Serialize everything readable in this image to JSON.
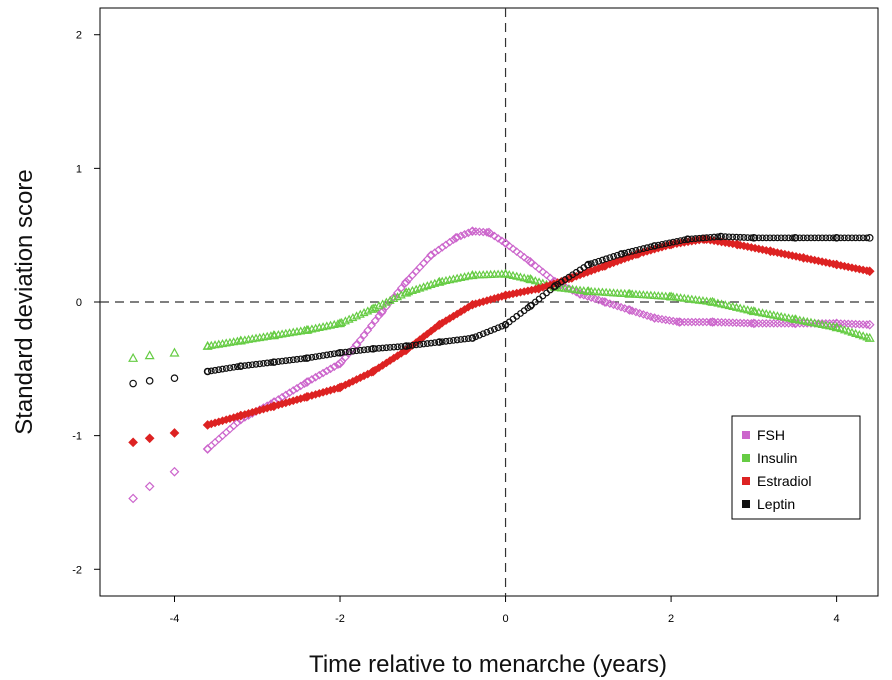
{
  "chart_data": {
    "type": "scatter",
    "title": "",
    "xlabel": "Time relative to menarche (years)",
    "ylabel": "Standard deviation score",
    "xlim": [
      -4.9,
      4.5
    ],
    "ylim": [
      -2.2,
      2.2
    ],
    "xticks": [
      -4,
      -2,
      0,
      2,
      4
    ],
    "yticks": [
      -2,
      -1,
      0,
      1,
      2
    ],
    "grid": false,
    "reference_lines": {
      "x": 0,
      "y": 0,
      "style": "dashed"
    },
    "legend_position": "bottom-right",
    "series": [
      {
        "name": "FSH",
        "color": "#cc66cc",
        "marker": "diamond",
        "points": [
          [
            -4.5,
            -1.47
          ],
          [
            -4.3,
            -1.38
          ],
          [
            -4.0,
            -1.27
          ],
          [
            -3.6,
            -1.1
          ],
          [
            -3.2,
            -0.88
          ],
          [
            -2.8,
            -0.75
          ],
          [
            -2.4,
            -0.6
          ],
          [
            -2.0,
            -0.46
          ],
          [
            -1.8,
            -0.32
          ],
          [
            -1.5,
            -0.08
          ],
          [
            -1.2,
            0.15
          ],
          [
            -0.9,
            0.35
          ],
          [
            -0.6,
            0.48
          ],
          [
            -0.4,
            0.53
          ],
          [
            -0.2,
            0.52
          ],
          [
            0.0,
            0.44
          ],
          [
            0.3,
            0.3
          ],
          [
            0.6,
            0.15
          ],
          [
            0.9,
            0.06
          ],
          [
            1.2,
            0.0
          ],
          [
            1.5,
            -0.06
          ],
          [
            1.8,
            -0.12
          ],
          [
            2.1,
            -0.15
          ],
          [
            2.5,
            -0.15
          ],
          [
            3.0,
            -0.16
          ],
          [
            3.5,
            -0.16
          ],
          [
            4.0,
            -0.16
          ],
          [
            4.4,
            -0.17
          ]
        ]
      },
      {
        "name": "Insulin",
        "color": "#66cc44",
        "marker": "triangle",
        "points": [
          [
            -4.5,
            -0.42
          ],
          [
            -4.3,
            -0.4
          ],
          [
            -4.0,
            -0.38
          ],
          [
            -3.6,
            -0.33
          ],
          [
            -3.2,
            -0.29
          ],
          [
            -2.8,
            -0.25
          ],
          [
            -2.4,
            -0.21
          ],
          [
            -2.0,
            -0.16
          ],
          [
            -1.6,
            -0.05
          ],
          [
            -1.2,
            0.07
          ],
          [
            -0.8,
            0.15
          ],
          [
            -0.4,
            0.2
          ],
          [
            0.0,
            0.21
          ],
          [
            0.3,
            0.17
          ],
          [
            0.6,
            0.11
          ],
          [
            1.0,
            0.08
          ],
          [
            1.5,
            0.06
          ],
          [
            2.0,
            0.04
          ],
          [
            2.5,
            0.0
          ],
          [
            3.0,
            -0.07
          ],
          [
            3.5,
            -0.13
          ],
          [
            4.0,
            -0.19
          ],
          [
            4.4,
            -0.27
          ]
        ]
      },
      {
        "name": "Estradiol",
        "color": "#dd2222",
        "marker": "diamond-filled",
        "points": [
          [
            -4.5,
            -1.05
          ],
          [
            -4.3,
            -1.02
          ],
          [
            -4.0,
            -0.98
          ],
          [
            -3.6,
            -0.92
          ],
          [
            -3.2,
            -0.85
          ],
          [
            -2.8,
            -0.78
          ],
          [
            -2.4,
            -0.71
          ],
          [
            -2.0,
            -0.64
          ],
          [
            -1.6,
            -0.52
          ],
          [
            -1.2,
            -0.36
          ],
          [
            -0.8,
            -0.17
          ],
          [
            -0.4,
            -0.02
          ],
          [
            0.0,
            0.05
          ],
          [
            0.4,
            0.1
          ],
          [
            0.8,
            0.18
          ],
          [
            1.2,
            0.27
          ],
          [
            1.6,
            0.36
          ],
          [
            2.0,
            0.43
          ],
          [
            2.4,
            0.47
          ],
          [
            2.8,
            0.43
          ],
          [
            3.2,
            0.38
          ],
          [
            3.6,
            0.33
          ],
          [
            4.0,
            0.28
          ],
          [
            4.4,
            0.23
          ]
        ]
      },
      {
        "name": "Leptin",
        "color": "#111111",
        "marker": "circle",
        "points": [
          [
            -4.5,
            -0.61
          ],
          [
            -4.3,
            -0.59
          ],
          [
            -4.0,
            -0.57
          ],
          [
            -3.6,
            -0.52
          ],
          [
            -3.2,
            -0.48
          ],
          [
            -2.8,
            -0.45
          ],
          [
            -2.4,
            -0.42
          ],
          [
            -2.0,
            -0.38
          ],
          [
            -1.6,
            -0.35
          ],
          [
            -1.2,
            -0.33
          ],
          [
            -0.8,
            -0.3
          ],
          [
            -0.4,
            -0.27
          ],
          [
            0.0,
            -0.17
          ],
          [
            0.3,
            -0.03
          ],
          [
            0.6,
            0.12
          ],
          [
            1.0,
            0.28
          ],
          [
            1.4,
            0.36
          ],
          [
            1.8,
            0.42
          ],
          [
            2.2,
            0.47
          ],
          [
            2.6,
            0.49
          ],
          [
            3.0,
            0.48
          ],
          [
            3.5,
            0.48
          ],
          [
            4.0,
            0.48
          ],
          [
            4.4,
            0.48
          ]
        ]
      }
    ]
  }
}
